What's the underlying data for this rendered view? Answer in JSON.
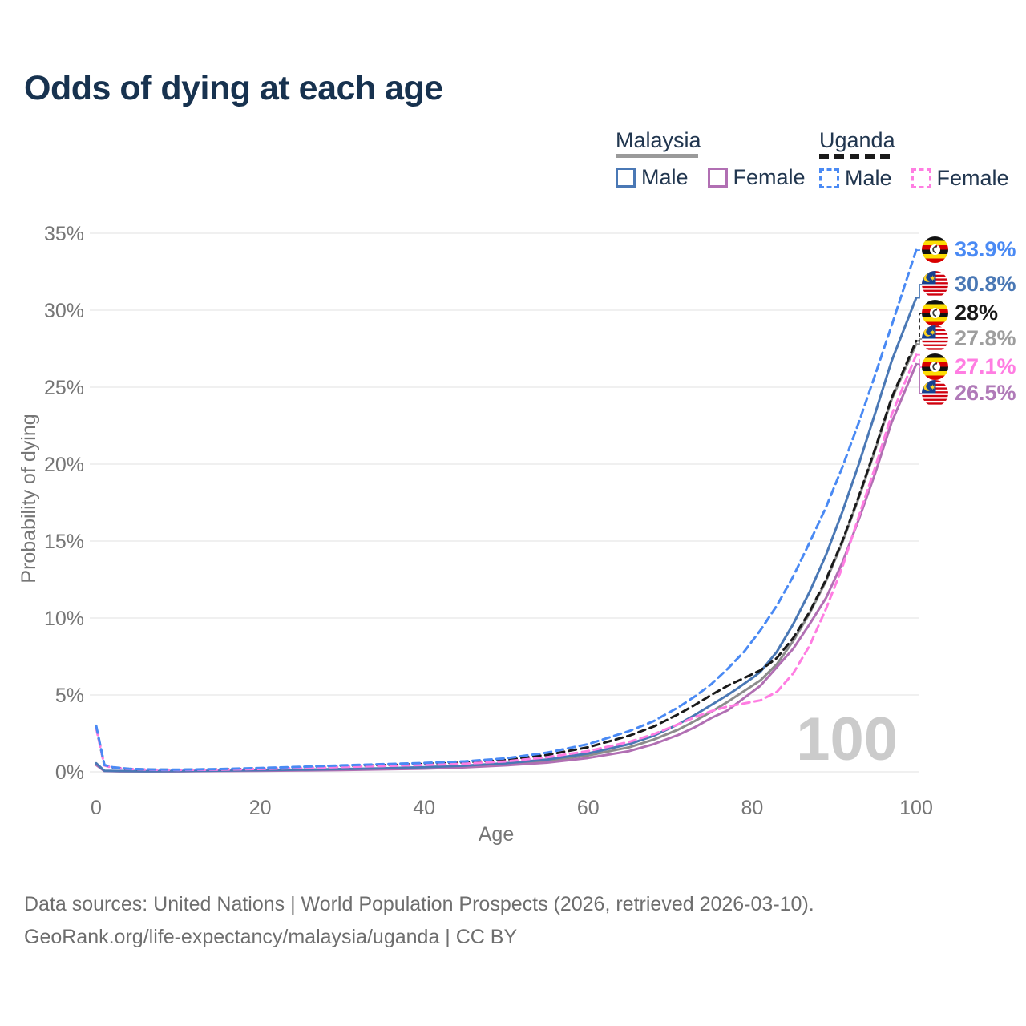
{
  "title": "Odds of dying at each age",
  "legend": {
    "groups": [
      {
        "id": "malaysia",
        "label": "Malaysia",
        "line_style": "solid",
        "line_color": "#9a9a9a",
        "items": [
          {
            "label": "Male",
            "color": "#4a78b5"
          },
          {
            "label": "Female",
            "color": "#b16fb3"
          }
        ]
      },
      {
        "id": "uganda",
        "label": "Uganda",
        "line_style": "dashed",
        "line_color": "#1a1a1a",
        "items": [
          {
            "label": "Male",
            "color": "#4a8af4"
          },
          {
            "label": "Female",
            "color": "#ff7de2"
          }
        ]
      }
    ]
  },
  "watermark_age": "100",
  "chart_data": {
    "type": "line",
    "title": "Odds of dying at each age",
    "xlabel": "Age",
    "ylabel": "Probability of dying",
    "xlim": [
      0,
      100
    ],
    "ylim": [
      0,
      35
    ],
    "x_ticks": [
      0,
      20,
      40,
      60,
      80,
      100
    ],
    "y_tick_values": [
      0,
      5,
      10,
      15,
      20,
      25,
      30,
      35
    ],
    "y_tick_labels": [
      "0%",
      "5%",
      "10%",
      "15%",
      "20%",
      "25%",
      "30%",
      "35%"
    ],
    "grid": "horizontal",
    "legend_position": "top-right",
    "series": [
      {
        "id": "malaysia-both",
        "name": "Malaysia",
        "country": "malaysia",
        "sex": "both",
        "color": "#8c8c8c",
        "dashed": false,
        "end_label": "27.8%",
        "label_color": "#9e9e9e",
        "label_rank": 3,
        "points": [
          [
            0,
            0.5
          ],
          [
            1,
            0.06
          ],
          [
            3,
            0.04
          ],
          [
            6,
            0.04
          ],
          [
            10,
            0.04
          ],
          [
            15,
            0.07
          ],
          [
            20,
            0.09
          ],
          [
            25,
            0.12
          ],
          [
            30,
            0.15
          ],
          [
            35,
            0.2
          ],
          [
            40,
            0.26
          ],
          [
            45,
            0.35
          ],
          [
            50,
            0.5
          ],
          [
            55,
            0.72
          ],
          [
            60,
            1.07
          ],
          [
            65,
            1.6
          ],
          [
            68,
            2.1
          ],
          [
            71,
            2.75
          ],
          [
            73,
            3.3
          ],
          [
            75,
            3.9
          ],
          [
            77,
            4.55
          ],
          [
            78,
            4.9
          ],
          [
            80,
            5.6
          ],
          [
            81,
            5.95
          ],
          [
            83,
            7.0
          ],
          [
            85,
            8.5
          ],
          [
            87,
            10.3
          ],
          [
            89,
            12.4
          ],
          [
            91,
            14.9
          ],
          [
            93,
            17.8
          ],
          [
            95,
            20.9
          ],
          [
            97,
            24.2
          ],
          [
            100,
            27.8
          ]
        ]
      },
      {
        "id": "malaysia-female",
        "name": "Female",
        "country": "malaysia",
        "sex": "female",
        "color": "#b16fb3",
        "dashed": false,
        "end_label": "26.5%",
        "label_color": "#b07ab8",
        "label_rank": 5,
        "points": [
          [
            0,
            0.45
          ],
          [
            1,
            0.05
          ],
          [
            3,
            0.03
          ],
          [
            6,
            0.03
          ],
          [
            10,
            0.03
          ],
          [
            15,
            0.05
          ],
          [
            20,
            0.07
          ],
          [
            25,
            0.09
          ],
          [
            30,
            0.12
          ],
          [
            35,
            0.16
          ],
          [
            40,
            0.21
          ],
          [
            45,
            0.29
          ],
          [
            50,
            0.42
          ],
          [
            55,
            0.6
          ],
          [
            60,
            0.9
          ],
          [
            65,
            1.35
          ],
          [
            68,
            1.8
          ],
          [
            71,
            2.4
          ],
          [
            73,
            2.9
          ],
          [
            75,
            3.5
          ],
          [
            77,
            4.0
          ],
          [
            79,
            4.8
          ],
          [
            81,
            5.6
          ],
          [
            83,
            6.8
          ],
          [
            85,
            8.0
          ],
          [
            87,
            9.6
          ],
          [
            89,
            11.3
          ],
          [
            91,
            13.6
          ],
          [
            93,
            16.4
          ],
          [
            95,
            19.4
          ],
          [
            97,
            22.7
          ],
          [
            100,
            26.5
          ]
        ]
      },
      {
        "id": "malaysia-male",
        "name": "Male",
        "country": "malaysia",
        "sex": "male",
        "color": "#4a78b5",
        "dashed": false,
        "end_label": "30.8%",
        "label_color": "#4a78b5",
        "label_rank": 1,
        "points": [
          [
            0,
            0.55
          ],
          [
            1,
            0.07
          ],
          [
            3,
            0.05
          ],
          [
            6,
            0.04
          ],
          [
            10,
            0.05
          ],
          [
            15,
            0.08
          ],
          [
            20,
            0.11
          ],
          [
            25,
            0.14
          ],
          [
            30,
            0.18
          ],
          [
            35,
            0.23
          ],
          [
            40,
            0.3
          ],
          [
            45,
            0.4
          ],
          [
            50,
            0.56
          ],
          [
            55,
            0.8
          ],
          [
            60,
            1.2
          ],
          [
            65,
            1.8
          ],
          [
            68,
            2.35
          ],
          [
            71,
            3.1
          ],
          [
            73,
            3.7
          ],
          [
            75,
            4.35
          ],
          [
            77,
            5.0
          ],
          [
            78,
            5.35
          ],
          [
            80,
            6.1
          ],
          [
            81,
            6.5
          ],
          [
            83,
            7.8
          ],
          [
            85,
            9.6
          ],
          [
            87,
            11.7
          ],
          [
            89,
            14.1
          ],
          [
            91,
            16.9
          ],
          [
            93,
            20.0
          ],
          [
            95,
            23.3
          ],
          [
            97,
            26.7
          ],
          [
            100,
            30.8
          ]
        ]
      },
      {
        "id": "uganda-both",
        "name": "Uganda",
        "country": "uganda",
        "sex": "both",
        "color": "#1a1a1a",
        "dashed": true,
        "end_label": "28%",
        "label_color": "#1a1a1a",
        "label_rank": 2,
        "points": [
          [
            0,
            2.92
          ],
          [
            1,
            0.43
          ],
          [
            2,
            0.28
          ],
          [
            4,
            0.19
          ],
          [
            7,
            0.14
          ],
          [
            10,
            0.13
          ],
          [
            15,
            0.16
          ],
          [
            20,
            0.22
          ],
          [
            25,
            0.29
          ],
          [
            30,
            0.37
          ],
          [
            35,
            0.44
          ],
          [
            40,
            0.52
          ],
          [
            45,
            0.61
          ],
          [
            50,
            0.78
          ],
          [
            55,
            1.1
          ],
          [
            60,
            1.6
          ],
          [
            65,
            2.35
          ],
          [
            68,
            2.95
          ],
          [
            71,
            3.75
          ],
          [
            73,
            4.35
          ],
          [
            75,
            5.0
          ],
          [
            77,
            5.6
          ],
          [
            79,
            6.1
          ],
          [
            81,
            6.6
          ],
          [
            83,
            7.4
          ],
          [
            85,
            8.7
          ],
          [
            87,
            10.4
          ],
          [
            89,
            12.5
          ],
          [
            91,
            15.0
          ],
          [
            93,
            17.9
          ],
          [
            95,
            21.0
          ],
          [
            97,
            24.3
          ],
          [
            100,
            28.0
          ]
        ]
      },
      {
        "id": "uganda-female",
        "name": "Female",
        "country": "uganda",
        "sex": "female",
        "color": "#ff7de2",
        "dashed": true,
        "end_label": "27.1%",
        "label_color": "#ff7de2",
        "label_rank": 4,
        "points": [
          [
            0,
            2.85
          ],
          [
            1,
            0.41
          ],
          [
            2,
            0.26
          ],
          [
            4,
            0.18
          ],
          [
            7,
            0.13
          ],
          [
            10,
            0.12
          ],
          [
            15,
            0.14
          ],
          [
            20,
            0.19
          ],
          [
            25,
            0.25
          ],
          [
            30,
            0.31
          ],
          [
            35,
            0.38
          ],
          [
            40,
            0.45
          ],
          [
            45,
            0.53
          ],
          [
            50,
            0.68
          ],
          [
            55,
            0.95
          ],
          [
            60,
            1.35
          ],
          [
            65,
            1.95
          ],
          [
            68,
            2.45
          ],
          [
            71,
            3.1
          ],
          [
            73,
            3.55
          ],
          [
            75,
            3.95
          ],
          [
            77,
            4.25
          ],
          [
            79,
            4.45
          ],
          [
            81,
            4.65
          ],
          [
            83,
            5.2
          ],
          [
            85,
            6.4
          ],
          [
            87,
            8.2
          ],
          [
            89,
            10.6
          ],
          [
            91,
            13.3
          ],
          [
            93,
            16.6
          ],
          [
            95,
            19.8
          ],
          [
            97,
            23.2
          ],
          [
            100,
            27.1
          ]
        ]
      },
      {
        "id": "uganda-male",
        "name": "Male",
        "country": "uganda",
        "sex": "male",
        "color": "#4a8af4",
        "dashed": true,
        "end_label": "33.9%",
        "label_color": "#4a8af4",
        "label_rank": 0,
        "points": [
          [
            0,
            3.0
          ],
          [
            1,
            0.45
          ],
          [
            2,
            0.3
          ],
          [
            4,
            0.2
          ],
          [
            7,
            0.15
          ],
          [
            10,
            0.14
          ],
          [
            15,
            0.18
          ],
          [
            20,
            0.25
          ],
          [
            25,
            0.33
          ],
          [
            30,
            0.42
          ],
          [
            35,
            0.5
          ],
          [
            40,
            0.58
          ],
          [
            45,
            0.68
          ],
          [
            50,
            0.88
          ],
          [
            55,
            1.25
          ],
          [
            60,
            1.8
          ],
          [
            65,
            2.65
          ],
          [
            68,
            3.3
          ],
          [
            71,
            4.2
          ],
          [
            73,
            4.9
          ],
          [
            75,
            5.7
          ],
          [
            77,
            6.7
          ],
          [
            79,
            7.8
          ],
          [
            81,
            9.2
          ],
          [
            83,
            10.8
          ],
          [
            85,
            12.7
          ],
          [
            87,
            14.9
          ],
          [
            89,
            17.2
          ],
          [
            91,
            19.8
          ],
          [
            93,
            22.7
          ],
          [
            95,
            25.8
          ],
          [
            97,
            29.0
          ],
          [
            100,
            33.9
          ]
        ]
      }
    ]
  },
  "footer": {
    "line1": "Data sources: United Nations | World Population Prospects (2026, retrieved 2026-03-10).",
    "line2": "GeoRank.org/life-expectancy/malaysia/uganda | CC BY"
  }
}
